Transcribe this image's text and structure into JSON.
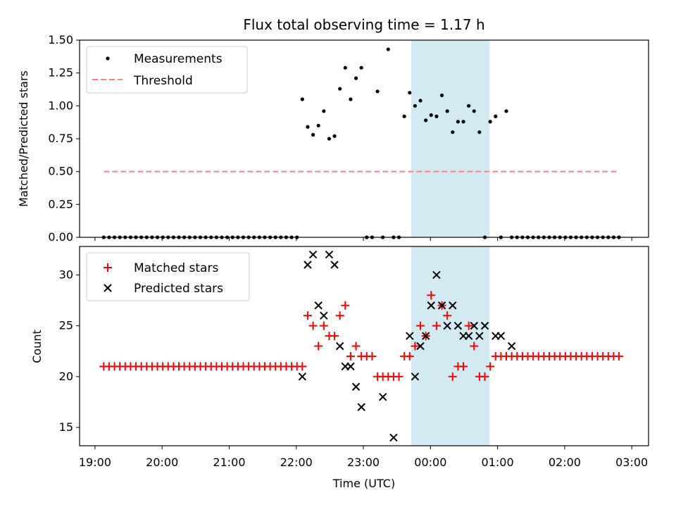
{
  "title": "Flux total observing time = 1.17 h",
  "chart_data": [
    {
      "type": "scatter",
      "ylabel": "Matched/Predicted stars",
      "ylim": [
        0,
        1.5
      ],
      "yticks": [
        0.0,
        0.25,
        0.5,
        0.75,
        1.0,
        1.25,
        1.5
      ],
      "ytick_labels": [
        "0.00",
        "0.25",
        "0.50",
        "0.75",
        "1.00",
        "1.25",
        "1.50"
      ],
      "x_range_hours": [
        18.77,
        27.25
      ],
      "legend_position": "top-left",
      "grid": false,
      "shaded_interval_hours": [
        23.713,
        24.883
      ],
      "shade_color": "#add8e6",
      "series": [
        {
          "name": "Measurements",
          "marker": "dot",
          "color": "#000000",
          "x": [
            19.13,
            19.21,
            19.29,
            19.37,
            19.45,
            19.53,
            19.61,
            19.69,
            19.77,
            19.85,
            19.93,
            20.01,
            20.09,
            20.17,
            20.25,
            20.33,
            20.41,
            20.49,
            20.57,
            20.65,
            20.73,
            20.81,
            20.89,
            20.97,
            21.05,
            21.13,
            21.21,
            21.29,
            21.37,
            21.45,
            21.53,
            21.61,
            21.69,
            21.77,
            21.85,
            21.93,
            22.01,
            22.09,
            22.17,
            22.25,
            22.33,
            22.41,
            22.49,
            22.57,
            22.65,
            22.73,
            22.81,
            22.89,
            22.97,
            23.05,
            23.13,
            23.21,
            23.29,
            23.37,
            23.45,
            23.53,
            23.61,
            23.69,
            23.77,
            23.85,
            23.93,
            24.01,
            24.09,
            24.17,
            24.25,
            24.33,
            24.41,
            24.49,
            24.57,
            24.65,
            24.73,
            24.81,
            24.89,
            24.97,
            25.05,
            25.13,
            25.21,
            25.29,
            25.37,
            25.45,
            25.53,
            25.61,
            25.69,
            25.77,
            25.85,
            25.93,
            26.01,
            26.09,
            26.17,
            26.25,
            26.33,
            26.41,
            26.49,
            26.57,
            26.65,
            26.73,
            26.81
          ],
          "y": [
            0,
            0,
            0,
            0,
            0,
            0,
            0,
            0,
            0,
            0,
            0,
            0,
            0,
            0,
            0,
            0,
            0,
            0,
            0,
            0,
            0,
            0,
            0,
            0,
            0,
            0,
            0,
            0,
            0,
            0,
            0,
            0,
            0,
            0,
            0,
            0,
            0,
            1.05,
            0.84,
            0.78,
            0.85,
            0.96,
            0.75,
            0.77,
            1.13,
            1.29,
            1.05,
            1.21,
            1.29,
            0,
            0,
            1.11,
            0,
            1.43,
            0,
            0,
            0.92,
            1.1,
            1.0,
            1.04,
            0.89,
            0.93,
            0.92,
            1.08,
            0.96,
            0.8,
            0.88,
            0.88,
            1.0,
            0.96,
            0.8,
            0,
            0.88,
            0.92,
            0,
            0.96,
            0,
            0,
            0,
            0,
            0,
            0,
            0,
            0,
            0,
            0,
            0,
            0,
            0,
            0,
            0,
            0,
            0,
            0,
            0,
            0,
            0
          ]
        },
        {
          "name": "Threshold",
          "marker": "dashed-line",
          "color": "#ff7f7f",
          "x": [
            19.13,
            26.81
          ],
          "y": [
            0.5,
            0.5
          ]
        }
      ]
    },
    {
      "type": "scatter",
      "xlabel": "Time (UTC)",
      "ylabel": "Count",
      "ylim": [
        13.2,
        32.8
      ],
      "yticks": [
        15,
        20,
        25,
        30
      ],
      "ytick_labels": [
        "15",
        "20",
        "25",
        "30"
      ],
      "x_range_hours": [
        18.77,
        27.25
      ],
      "xticks_hours": [
        19,
        20,
        21,
        22,
        23,
        24,
        25,
        26,
        27
      ],
      "xtick_labels": [
        "19:00",
        "20:00",
        "21:00",
        "22:00",
        "23:00",
        "00:00",
        "01:00",
        "02:00",
        "03:00"
      ],
      "legend_position": "top-left",
      "grid": false,
      "shaded_interval_hours": [
        23.713,
        24.883
      ],
      "shade_color": "#add8e6",
      "series": [
        {
          "name": "Matched stars",
          "marker": "plus",
          "color": "#ff0000",
          "x": [
            19.13,
            19.21,
            19.29,
            19.37,
            19.45,
            19.53,
            19.61,
            19.69,
            19.77,
            19.85,
            19.93,
            20.01,
            20.09,
            20.17,
            20.25,
            20.33,
            20.41,
            20.49,
            20.57,
            20.65,
            20.73,
            20.81,
            20.89,
            20.97,
            21.05,
            21.13,
            21.21,
            21.29,
            21.37,
            21.45,
            21.53,
            21.61,
            21.69,
            21.77,
            21.85,
            21.93,
            22.01,
            22.09,
            22.17,
            22.25,
            22.33,
            22.41,
            22.49,
            22.57,
            22.65,
            22.73,
            22.81,
            22.89,
            22.97,
            23.05,
            23.13,
            23.21,
            23.29,
            23.37,
            23.45,
            23.53,
            23.61,
            23.69,
            23.77,
            23.85,
            23.93,
            24.01,
            24.09,
            24.17,
            24.25,
            24.33,
            24.41,
            24.49,
            24.57,
            24.65,
            24.73,
            24.81,
            24.89,
            24.97,
            25.05,
            25.13,
            25.21,
            25.29,
            25.37,
            25.45,
            25.53,
            25.61,
            25.69,
            25.77,
            25.85,
            25.93,
            26.01,
            26.09,
            26.17,
            26.25,
            26.33,
            26.41,
            26.49,
            26.57,
            26.65,
            26.73,
            26.81
          ],
          "y": [
            21,
            21,
            21,
            21,
            21,
            21,
            21,
            21,
            21,
            21,
            21,
            21,
            21,
            21,
            21,
            21,
            21,
            21,
            21,
            21,
            21,
            21,
            21,
            21,
            21,
            21,
            21,
            21,
            21,
            21,
            21,
            21,
            21,
            21,
            21,
            21,
            21,
            21,
            26,
            25,
            23,
            25,
            24,
            24,
            26,
            27,
            22,
            23,
            22,
            22,
            22,
            20,
            20,
            20,
            20,
            20,
            22,
            22,
            23,
            25,
            24,
            28,
            25,
            27,
            26,
            20,
            21,
            21,
            25,
            23,
            20,
            20,
            21,
            22,
            22,
            22,
            22,
            22,
            22,
            22,
            22,
            22,
            22,
            22,
            22,
            22,
            22,
            22,
            22,
            22,
            22,
            22,
            22,
            22,
            22,
            22,
            22
          ]
        },
        {
          "name": "Predicted stars",
          "marker": "x",
          "color": "#000000",
          "x": [
            22.09,
            22.17,
            22.25,
            22.33,
            22.41,
            22.49,
            22.57,
            22.65,
            22.73,
            22.81,
            22.89,
            22.97,
            23.29,
            23.45,
            23.69,
            23.77,
            23.85,
            23.93,
            24.01,
            24.09,
            24.17,
            24.25,
            24.33,
            24.41,
            24.49,
            24.57,
            24.65,
            24.73,
            24.81,
            24.97,
            25.05,
            25.21
          ],
          "y": [
            20,
            31,
            32,
            27,
            26,
            32,
            31,
            23,
            21,
            21,
            19,
            17,
            18,
            14,
            24,
            20,
            23,
            24,
            27,
            30,
            27,
            25,
            27,
            25,
            24,
            24,
            25,
            24,
            25,
            24,
            24,
            23
          ]
        }
      ]
    }
  ]
}
